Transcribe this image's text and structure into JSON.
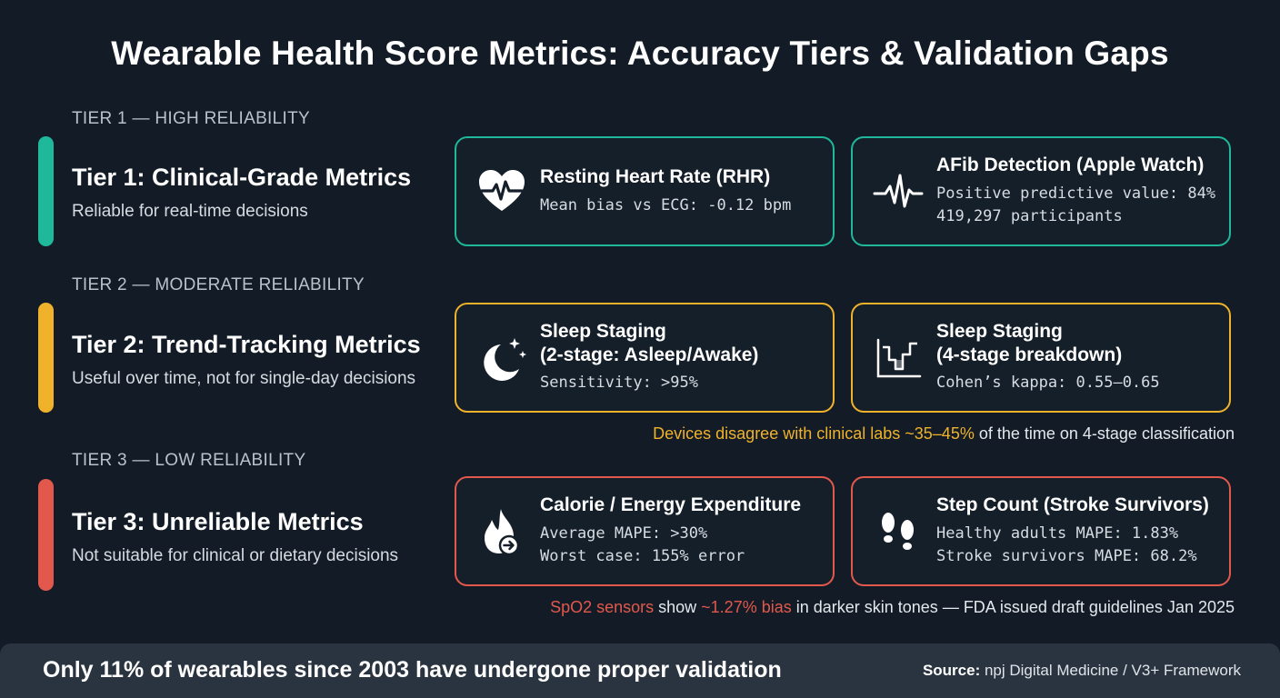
{
  "title": "Wearable Health Score Metrics: Accuracy Tiers & Validation Gaps",
  "colors": {
    "tier1": "#1fb89a",
    "tier2": "#efb22a",
    "tier3": "#e2584c",
    "background": "#131c26"
  },
  "tiers": [
    {
      "label": "TIER 1 — HIGH RELIABILITY",
      "heading": "Tier 1: Clinical-Grade Metrics",
      "subheading": "Reliable for real-time decisions",
      "cards": [
        {
          "icon": "heart-pulse-icon",
          "title": "Resting Heart Rate (RHR)",
          "lines": [
            "Mean bias vs ECG: -0.12 bpm"
          ]
        },
        {
          "icon": "ecg-wave-icon",
          "title": "AFib Detection (Apple Watch)",
          "lines": [
            "Positive predictive value: 84%",
            "419,297 participants"
          ]
        }
      ]
    },
    {
      "label": "TIER 2 — MODERATE RELIABILITY",
      "heading": "Tier 2: Trend-Tracking Metrics",
      "subheading": "Useful over time, not for single-day decisions",
      "cards": [
        {
          "icon": "moon-stars-icon",
          "title_lines": [
            "Sleep Staging",
            "(2-stage: Asleep/Awake)"
          ],
          "lines": [
            "Sensitivity: >95%"
          ]
        },
        {
          "icon": "hypnogram-chart-icon",
          "title_lines": [
            "Sleep Staging",
            "(4-stage breakdown)"
          ],
          "lines": [
            "Cohen’s kappa: 0.55–0.65"
          ]
        }
      ],
      "note": {
        "highlight": "Devices disagree with clinical labs ~35–45%",
        "rest": " of the time on 4-stage classification"
      }
    },
    {
      "label": "TIER 3 — LOW RELIABILITY",
      "heading": "Tier 3: Unreliable Metrics",
      "subheading": "Not suitable for clinical or dietary decisions",
      "cards": [
        {
          "icon": "flame-arrow-icon",
          "title": "Calorie / Energy Expenditure",
          "lines": [
            "Average MAPE: >30%",
            "Worst case: 155% error"
          ]
        },
        {
          "icon": "footprints-icon",
          "title": "Step Count (Stroke Survivors)",
          "lines": [
            "Healthy adults MAPE: 1.83%",
            "Stroke survivors MAPE: 68.2%"
          ]
        }
      ],
      "note": {
        "h1": "SpO2 sensors",
        "t1": " show ",
        "h2": "~1.27% bias",
        "t2": " in darker skin tones — FDA issued draft guidelines Jan 2025"
      }
    }
  ],
  "footer": {
    "main": "Only 11% of wearables since 2003 have undergone proper validation",
    "source_label": "Source:",
    "source_text": " npj Digital Medicine / V3+ Framework"
  }
}
